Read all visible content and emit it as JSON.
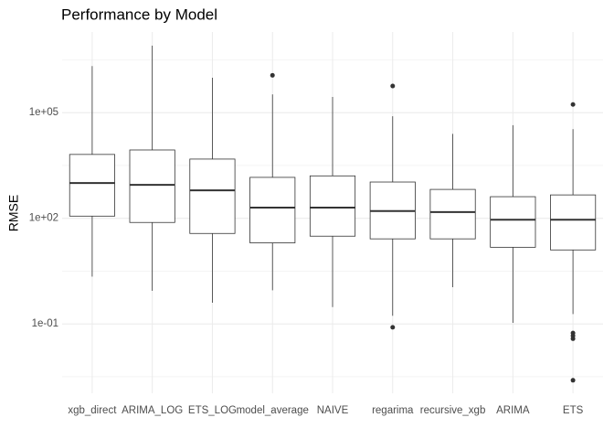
{
  "chart_data": {
    "type": "boxplot",
    "title": "Performance by Model",
    "y_label": "RMSE",
    "y_scale": "log",
    "grid": true,
    "ylim": [
      0.00107,
      19500000
    ],
    "yticks": [
      {
        "value": 100000,
        "label": "1e+05"
      },
      {
        "value": 100,
        "label": "1e+02"
      },
      {
        "value": 0.1,
        "label": "1e-01"
      }
    ],
    "minor_grid": [
      3162277,
      3162,
      3.162,
      0.003162
    ],
    "box_fill": "#ffffff",
    "box_color": "#333333",
    "categories": [
      "xgb_direct",
      "ARIMA_LOG",
      "ETS_LOG",
      "model_average",
      "NAIVE",
      "regarima",
      "recursive_xgb",
      "ARIMA",
      "ETS"
    ],
    "boxes": [
      {
        "min": 2.2,
        "q1": 115,
        "median": 1000,
        "q3": 6500,
        "max": 2100000,
        "outliers": []
      },
      {
        "min": 0.87,
        "q1": 76,
        "median": 890,
        "q3": 8700,
        "max": 8000000,
        "outliers": []
      },
      {
        "min": 0.4,
        "q1": 37,
        "median": 620,
        "q3": 4800,
        "max": 980000,
        "outliers": []
      },
      {
        "min": 0.9,
        "q1": 20,
        "median": 200,
        "q3": 1450,
        "max": 330000,
        "outliers": [
          1150000
        ]
      },
      {
        "min": 0.3,
        "q1": 31,
        "median": 200,
        "q3": 1600,
        "max": 280000,
        "outliers": []
      },
      {
        "min": 0.17,
        "q1": 26,
        "median": 160,
        "q3": 1070,
        "max": 79000,
        "outliers": [
          570000,
          0.08
        ]
      },
      {
        "min": 1.1,
        "q1": 26,
        "median": 150,
        "q3": 660,
        "max": 25000,
        "outliers": []
      },
      {
        "min": 0.107,
        "q1": 15,
        "median": 91,
        "q3": 410,
        "max": 44000,
        "outliers": []
      },
      {
        "min": 0.19,
        "q1": 12.6,
        "median": 91,
        "q3": 460,
        "max": 34000,
        "outliers": [
          170000,
          0.055,
          0.046,
          0.038,
          0.0025
        ]
      }
    ]
  }
}
